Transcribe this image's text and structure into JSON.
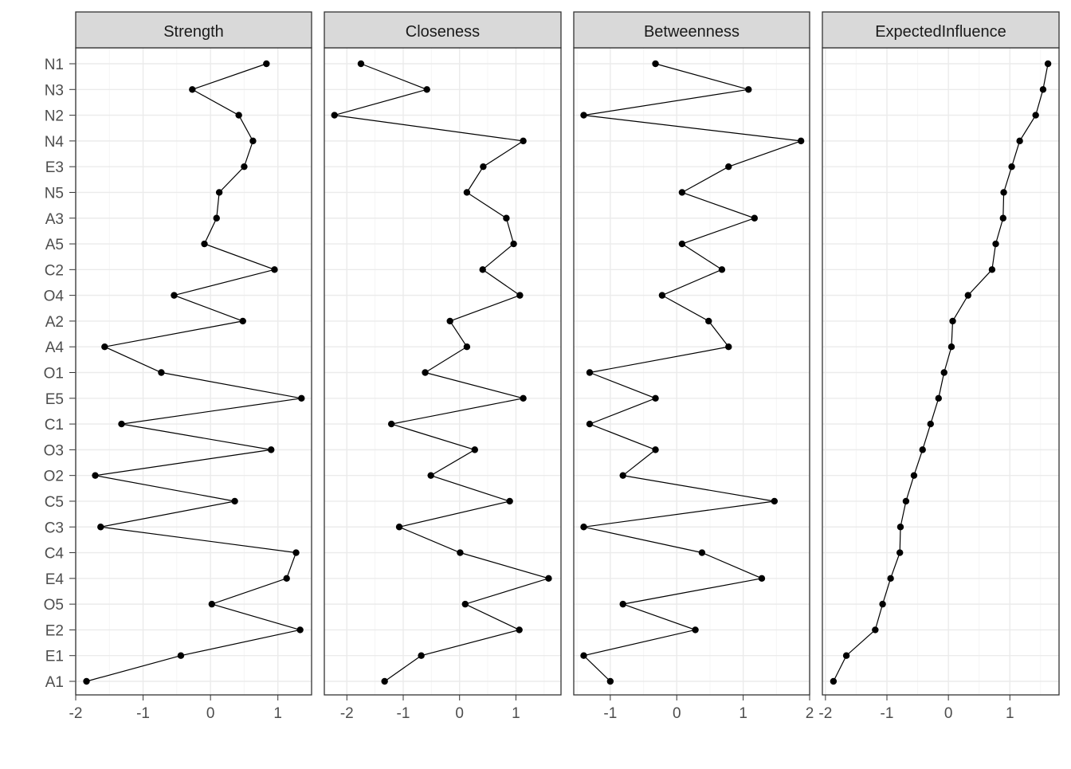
{
  "chart_data": {
    "type": "line",
    "layout": "faceted-columns",
    "nodes": [
      "N1",
      "N3",
      "N2",
      "N4",
      "E3",
      "N5",
      "A3",
      "A5",
      "C2",
      "O4",
      "A2",
      "A4",
      "O1",
      "E5",
      "C1",
      "O3",
      "O2",
      "C5",
      "C3",
      "C4",
      "E4",
      "O5",
      "E2",
      "E1",
      "A1"
    ],
    "grid": true,
    "colors": {
      "point": "#000000",
      "line": "#000000",
      "strip_fill": "#d9d9d9",
      "grid_major": "#ebebeb",
      "grid_minor": "#f5f5f5",
      "border": "#333333",
      "tick_label": "#4d4d4d"
    },
    "panels": [
      {
        "title": "Strength",
        "xlim": [
          -2.0,
          1.5
        ],
        "ticks": [
          -2,
          -1,
          0,
          1
        ],
        "tick_labels": [
          "-2",
          "-1",
          "0",
          "1"
        ],
        "values": [
          0.83,
          -0.27,
          0.42,
          0.63,
          0.5,
          0.13,
          0.09,
          -0.09,
          0.95,
          -0.54,
          0.48,
          -1.57,
          -0.73,
          1.35,
          -1.32,
          0.9,
          -1.71,
          0.36,
          -1.63,
          1.27,
          1.13,
          0.02,
          1.33,
          -0.44,
          -1.84
        ]
      },
      {
        "title": "Closeness",
        "xlim": [
          -2.4,
          1.8
        ],
        "ticks": [
          -2,
          -1,
          0,
          1
        ],
        "tick_labels": [
          "-2",
          "-1",
          "0",
          "1"
        ],
        "values": [
          -1.75,
          -0.58,
          -2.22,
          1.13,
          0.42,
          0.13,
          0.83,
          0.96,
          0.41,
          1.07,
          -0.17,
          0.13,
          -0.61,
          1.13,
          -1.21,
          0.27,
          -0.51,
          0.89,
          -1.07,
          0.01,
          1.58,
          0.1,
          1.06,
          -0.68,
          -1.33
        ]
      },
      {
        "title": "Betweenness",
        "xlim": [
          -1.55,
          2.0
        ],
        "ticks": [
          -1,
          0,
          1,
          2
        ],
        "tick_labels": [
          "-1",
          "0",
          "1",
          "2"
        ],
        "values": [
          -0.32,
          1.08,
          -1.4,
          1.87,
          0.78,
          0.08,
          1.17,
          0.08,
          0.68,
          -0.22,
          0.48,
          0.78,
          -1.31,
          -0.32,
          -1.31,
          -0.32,
          -0.81,
          1.47,
          -1.4,
          0.38,
          1.28,
          -0.81,
          0.28,
          -1.4,
          -1.0
        ]
      },
      {
        "title": "ExpectedInfluence",
        "xlim": [
          -2.05,
          1.8
        ],
        "ticks": [
          -2,
          -1,
          0,
          1
        ],
        "tick_labels": [
          "-2",
          "-1",
          "0",
          "1"
        ],
        "values": [
          1.62,
          1.54,
          1.42,
          1.16,
          1.03,
          0.9,
          0.89,
          0.77,
          0.71,
          0.32,
          0.07,
          0.05,
          -0.07,
          -0.16,
          -0.29,
          -0.42,
          -0.56,
          -0.69,
          -0.78,
          -0.79,
          -0.94,
          -1.07,
          -1.19,
          -1.66,
          -1.87
        ]
      }
    ]
  }
}
